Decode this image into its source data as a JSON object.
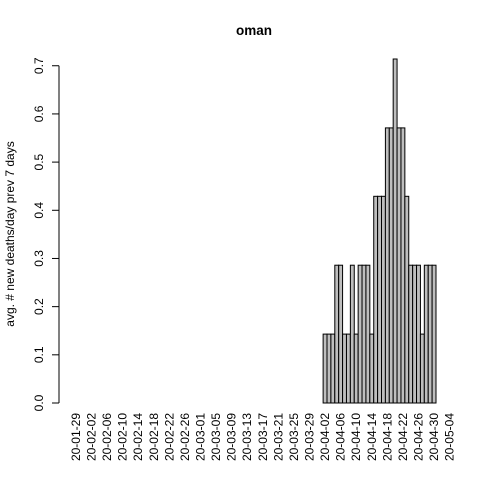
{
  "chart_data": {
    "type": "bar",
    "title": "oman",
    "xlabel": "",
    "ylabel": "avg. # new deaths/day prev  7  days",
    "ylim": [
      0,
      0.714
    ],
    "yticks": [
      0.0,
      0.1,
      0.2,
      0.3,
      0.4,
      0.5,
      0.6,
      0.7
    ],
    "ytick_labels": [
      "0.0",
      "0.1",
      "0.2",
      "0.3",
      "0.4",
      "0.5",
      "0.6",
      "0.7"
    ],
    "grid": false,
    "legend": "none",
    "bar_fill": "#bebebe",
    "bar_stroke": "#000000",
    "start_date": "2020-01-29",
    "xtick_labels": [
      "20-01-29",
      "20-02-02",
      "20-02-06",
      "20-02-10",
      "20-02-14",
      "20-02-18",
      "20-02-22",
      "20-02-26",
      "20-03-01",
      "20-03-05",
      "20-03-09",
      "20-03-13",
      "20-03-17",
      "20-03-21",
      "20-03-25",
      "20-03-29",
      "20-04-02",
      "20-04-06",
      "20-04-10",
      "20-04-14",
      "20-04-18",
      "20-04-22",
      "20-04-26",
      "20-04-30",
      "20-05-04"
    ],
    "values": [
      0,
      0,
      0,
      0,
      0,
      0,
      0,
      0,
      0,
      0,
      0,
      0,
      0,
      0,
      0,
      0,
      0,
      0,
      0,
      0,
      0,
      0,
      0,
      0,
      0,
      0,
      0,
      0,
      0,
      0,
      0,
      0,
      0,
      0,
      0,
      0,
      0,
      0,
      0,
      0,
      0,
      0,
      0,
      0,
      0,
      0,
      0,
      0,
      0,
      0,
      0,
      0,
      0,
      0,
      0,
      0,
      0,
      0,
      0,
      0,
      0,
      0,
      0,
      0,
      0.143,
      0.143,
      0.143,
      0.286,
      0.286,
      0.143,
      0.143,
      0.286,
      0.143,
      0.286,
      0.286,
      0.286,
      0.143,
      0.429,
      0.429,
      0.429,
      0.571,
      0.571,
      0.714,
      0.571,
      0.571,
      0.429,
      0.286,
      0.286,
      0.286,
      0.143,
      0.286,
      0.286,
      0.286
    ]
  }
}
